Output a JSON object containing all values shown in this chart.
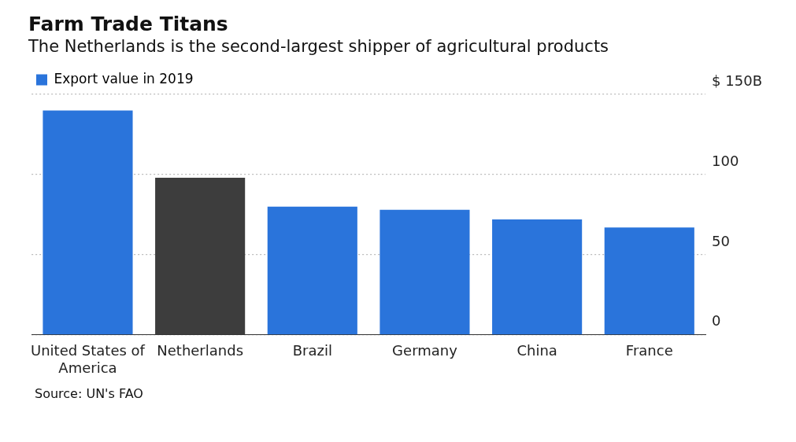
{
  "chart_data": {
    "type": "bar",
    "title": "Farm Trade Titans",
    "subtitle": "The Netherlands is the second-largest shipper of agricultural products",
    "categories": [
      "United States of America",
      "Netherlands",
      "Brazil",
      "Germany",
      "China",
      "France"
    ],
    "series": [
      {
        "name": "Export value in 2019",
        "color": "#2a74db",
        "colors": [
          "#2a74db",
          "#3d3d3d",
          "#2a74db",
          "#2a74db",
          "#2a74db",
          "#2a74db"
        ],
        "values": [
          140,
          98,
          80,
          78,
          72,
          67
        ]
      }
    ],
    "ylim": [
      0,
      150
    ],
    "yticks": [
      0,
      50,
      100,
      {
        "value": 150,
        "label": "$ 150B"
      }
    ],
    "grid": "y",
    "legend": "top left",
    "annotations": [
      "Source: UN's FAO"
    ]
  }
}
